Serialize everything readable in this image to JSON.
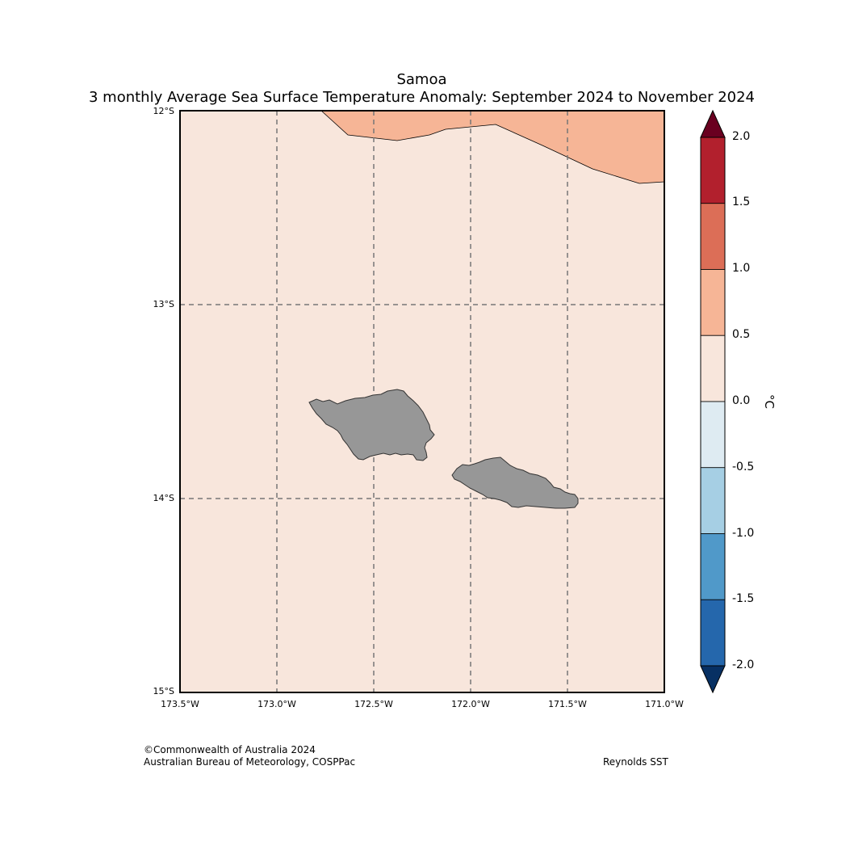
{
  "title": "Samoa",
  "subtitle": "3 monthly Average Sea Surface Temperature Anomaly: September 2024 to November 2024",
  "latitude_labels": [
    "12°S",
    "13°S",
    "14°S",
    "15°S"
  ],
  "longitude_labels": [
    "173.5°W",
    "173.0°W",
    "172.5°W",
    "172.0°W",
    "171.5°W",
    "171.0°W"
  ],
  "colorbar": {
    "unit": "°C",
    "ticks": [
      "2.0",
      "1.5",
      "1.0",
      "0.5",
      "0.0",
      "-0.5",
      "-1.0",
      "-1.5",
      "-2.0"
    ],
    "colors": [
      "#b2202d",
      "#dc6e57",
      "#f6b596",
      "#f8e6dc",
      "#deebf2",
      "#a6cfe4",
      "#5099c9",
      "#2567ac"
    ],
    "over_color": "#6a0020",
    "under_color": "#073063"
  },
  "map_fill": {
    "background": "#f8e6dc",
    "warm_region": "#f6b596",
    "land": "#979797",
    "grid": "#777777"
  },
  "credit_line1": "©Commonwealth of Australia 2024",
  "credit_line2": "Australian Bureau of Meteorology, COSPPac",
  "source": "Reynolds SST"
}
